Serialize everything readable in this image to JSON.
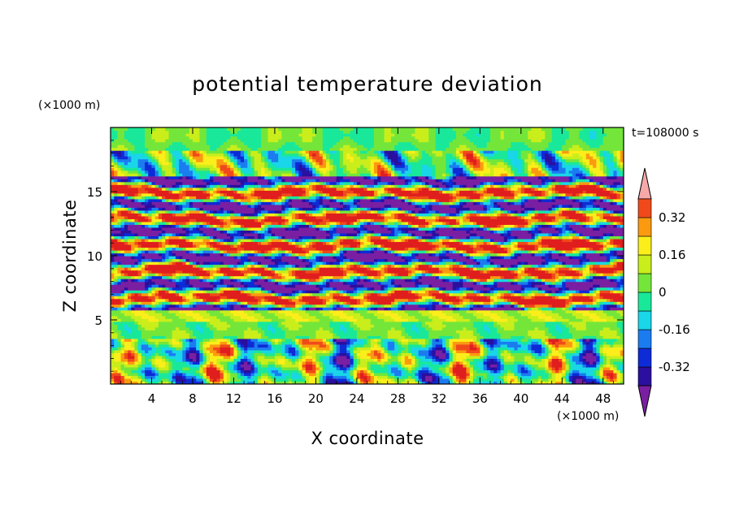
{
  "chart_data": {
    "type": "heatmap",
    "title": "potential temperature deviation",
    "xlabel": "X coordinate",
    "ylabel": "Z coordinate",
    "x_unit": "(×1000 m)",
    "y_unit": "(×1000 m)",
    "time_label": "t=108000 s",
    "xlim": [
      0,
      50
    ],
    "ylim": [
      0,
      20
    ],
    "x_ticks": [
      4,
      8,
      12,
      16,
      20,
      24,
      28,
      32,
      36,
      40,
      44,
      48
    ],
    "y_ticks": [
      5,
      10,
      15
    ],
    "x_tick_labels": [
      "4",
      "8",
      "12",
      "16",
      "20",
      "24",
      "28",
      "32",
      "36",
      "40",
      "44",
      "48"
    ],
    "y_tick_labels": [
      "5",
      "10",
      "15"
    ],
    "colorbar": {
      "levels": [
        -0.4,
        -0.32,
        -0.24,
        -0.16,
        -0.08,
        0,
        0.08,
        0.16,
        0.24,
        0.32,
        0.4
      ],
      "colors": [
        "#7a1fa2",
        "#2b0f9e",
        "#0d2bd6",
        "#1b7cf0",
        "#19d6e8",
        "#19e89a",
        "#74e63a",
        "#c9ee1b",
        "#fbee1b",
        "#fb9a10",
        "#f04a1a",
        "#e01e1e",
        "#f7a8a8"
      ],
      "labels": [
        "0.32",
        "0.16",
        "0",
        "-0.16",
        "-0.32"
      ],
      "label_values": [
        0.32,
        0.16,
        0,
        -0.16,
        -0.32
      ],
      "extend": "both"
    }
  }
}
